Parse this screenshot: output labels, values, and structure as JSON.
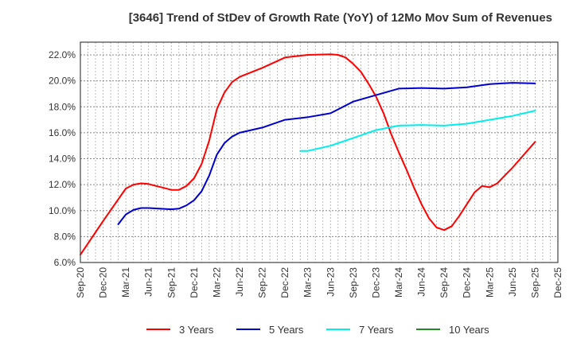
{
  "chart_data": {
    "type": "line",
    "title": "[3646]  Trend of StDev of Growth Rate (YoY) of 12Mo Mov Sum of Revenues",
    "xlabel": "",
    "ylabel": "",
    "ylim": [
      6.0,
      22.0
    ],
    "y_ticks": [
      "6.0%",
      "8.0%",
      "10.0%",
      "12.0%",
      "14.0%",
      "16.0%",
      "18.0%",
      "20.0%",
      "22.0%"
    ],
    "y_tick_values": [
      6,
      8,
      10,
      12,
      14,
      16,
      18,
      20,
      22
    ],
    "x_ticks": [
      "Sep-20",
      "Dec-20",
      "Mar-21",
      "Jun-21",
      "Sep-21",
      "Dec-21",
      "Mar-22",
      "Jun-22",
      "Sep-22",
      "Dec-22",
      "Mar-23",
      "Jun-23",
      "Sep-23",
      "Dec-23",
      "Mar-24",
      "Jun-24",
      "Sep-24",
      "Dec-24",
      "Mar-25",
      "Jun-25",
      "Sep-25",
      "Dec-25"
    ],
    "x_range_months": [
      0,
      63
    ],
    "x_unit": "months since Sep-20",
    "grid": true,
    "legend_position": "bottom",
    "series": [
      {
        "name": "3 Years",
        "color": "#ff0000",
        "points": [
          [
            0,
            6.6
          ],
          [
            3,
            9.2
          ],
          [
            6,
            11.7
          ],
          [
            7,
            12.0
          ],
          [
            8,
            12.1
          ],
          [
            9,
            12.05
          ],
          [
            10,
            11.9
          ],
          [
            11,
            11.75
          ],
          [
            12,
            11.6
          ],
          [
            13,
            11.6
          ],
          [
            14,
            11.9
          ],
          [
            15,
            12.5
          ],
          [
            16,
            13.6
          ],
          [
            17,
            15.4
          ],
          [
            18,
            17.8
          ],
          [
            19,
            19.1
          ],
          [
            20,
            19.9
          ],
          [
            21,
            20.3
          ],
          [
            24,
            21.0
          ],
          [
            27,
            21.8
          ],
          [
            30,
            22.0
          ],
          [
            33,
            22.05
          ],
          [
            34,
            22.0
          ],
          [
            35,
            21.8
          ],
          [
            36,
            21.3
          ],
          [
            37,
            20.7
          ],
          [
            38,
            19.8
          ],
          [
            39,
            18.8
          ],
          [
            40,
            17.5
          ],
          [
            41,
            15.9
          ],
          [
            42,
            14.5
          ],
          [
            43,
            13.2
          ],
          [
            44,
            11.8
          ],
          [
            45,
            10.5
          ],
          [
            46,
            9.4
          ],
          [
            47,
            8.7
          ],
          [
            48,
            8.5
          ],
          [
            49,
            8.8
          ],
          [
            50,
            9.6
          ],
          [
            51,
            10.5
          ],
          [
            52,
            11.4
          ],
          [
            53,
            11.9
          ],
          [
            54,
            11.8
          ],
          [
            55,
            12.1
          ],
          [
            56,
            12.7
          ],
          [
            57,
            13.3
          ],
          [
            60,
            15.3
          ]
        ]
      },
      {
        "name": "5 Years",
        "color": "#0000cc",
        "points": [
          [
            5,
            8.95
          ],
          [
            6,
            9.7
          ],
          [
            7,
            10.05
          ],
          [
            8,
            10.2
          ],
          [
            9,
            10.2
          ],
          [
            12,
            10.1
          ],
          [
            13,
            10.15
          ],
          [
            14,
            10.4
          ],
          [
            15,
            10.8
          ],
          [
            16,
            11.5
          ],
          [
            17,
            12.7
          ],
          [
            18,
            14.3
          ],
          [
            19,
            15.2
          ],
          [
            20,
            15.7
          ],
          [
            21,
            16.0
          ],
          [
            24,
            16.4
          ],
          [
            27,
            17.0
          ],
          [
            30,
            17.2
          ],
          [
            33,
            17.5
          ],
          [
            36,
            18.4
          ],
          [
            39,
            18.9
          ],
          [
            42,
            19.4
          ],
          [
            45,
            19.45
          ],
          [
            48,
            19.4
          ],
          [
            51,
            19.5
          ],
          [
            54,
            19.75
          ],
          [
            57,
            19.85
          ],
          [
            60,
            19.8
          ]
        ]
      },
      {
        "name": "7 Years",
        "color": "#00eeee",
        "points": [
          [
            29,
            14.6
          ],
          [
            30,
            14.6
          ],
          [
            33,
            15.0
          ],
          [
            36,
            15.6
          ],
          [
            39,
            16.2
          ],
          [
            42,
            16.55
          ],
          [
            45,
            16.6
          ],
          [
            48,
            16.55
          ],
          [
            51,
            16.7
          ],
          [
            54,
            17.0
          ],
          [
            57,
            17.3
          ],
          [
            60,
            17.7
          ]
        ]
      },
      {
        "name": "10 Years",
        "color": "#228b22",
        "points": []
      }
    ]
  }
}
